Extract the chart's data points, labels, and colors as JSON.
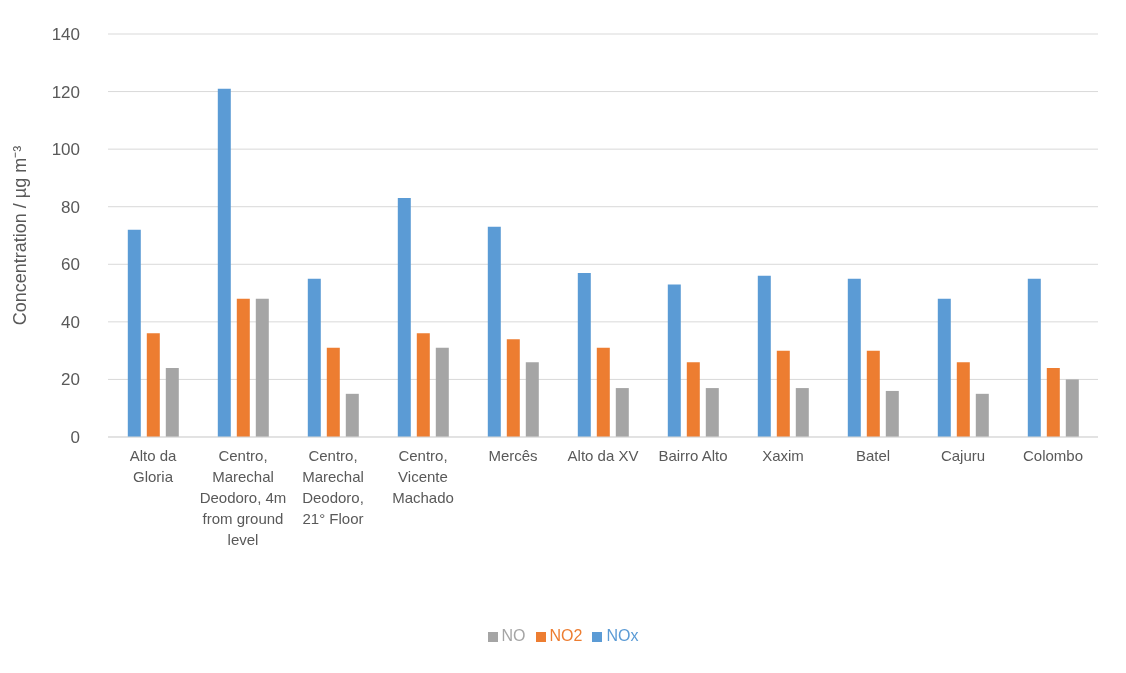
{
  "chart_data": {
    "type": "bar",
    "ylabel": "Concentration / µg m⁻³",
    "categories": [
      "Alto da Gloria",
      "Centro, Marechal Deodoro, 4m from ground level",
      "Centro, Marechal Deodoro, 21° Floor",
      "Centro, Vicente Machado",
      "Mercês",
      "Alto da XV",
      "Bairro Alto",
      "Xaxim",
      "Batel",
      "Cajuru",
      "Colombo"
    ],
    "series": [
      {
        "name": "NOx",
        "color": "#5b9bd5",
        "values": [
          72,
          121,
          55,
          83,
          73,
          57,
          53,
          56,
          55,
          48,
          55
        ]
      },
      {
        "name": "NO2",
        "color": "#ed7d31",
        "values": [
          36,
          48,
          31,
          36,
          34,
          31,
          26,
          30,
          30,
          26,
          24
        ]
      },
      {
        "name": "NO",
        "color": "#a5a5a5",
        "values": [
          24,
          48,
          15,
          31,
          26,
          17,
          17,
          17,
          16,
          15,
          20
        ]
      }
    ],
    "ylim": [
      0,
      140
    ],
    "yticks": [
      0,
      20,
      40,
      60,
      80,
      100,
      120,
      140
    ],
    "grid": "y",
    "legend": "bottom"
  }
}
